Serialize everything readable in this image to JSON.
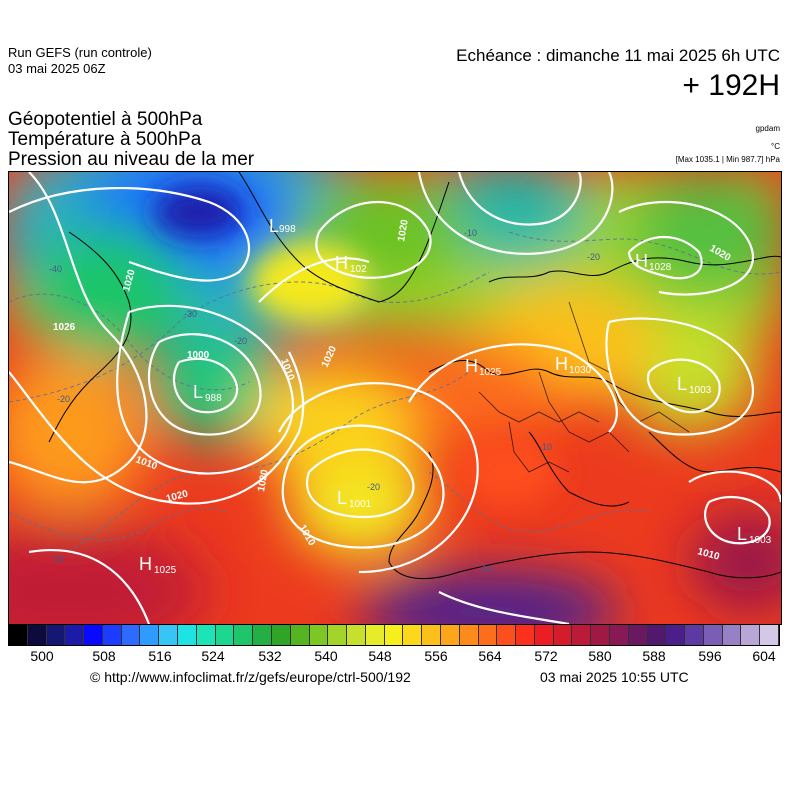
{
  "header": {
    "run_title": "Run GEFS (run controle)",
    "run_date": "03 mai 2025 06Z",
    "forecast_valid": "Echéance : dimanche 11 mai 2025 6h UTC",
    "lead_time": "+ 192H"
  },
  "parameters": [
    "Géopotentiel à 500hPa",
    "Température à 500hPa",
    "Pression au niveau de la mer"
  ],
  "units": {
    "geopotential": "gpdam",
    "temperature": "°C",
    "pressure_range": "[Max 1035.1 | Min 987.7] hPa"
  },
  "map": {
    "pressure_centers": [
      {
        "type": "H",
        "value": "102"
      },
      {
        "type": "H",
        "value": "1028"
      },
      {
        "type": "H",
        "value": "1025"
      },
      {
        "type": "H",
        "value": "1030"
      },
      {
        "type": "H",
        "value": "1025"
      },
      {
        "type": "L",
        "value": "998"
      },
      {
        "type": "L",
        "value": "988"
      },
      {
        "type": "L",
        "value": "1001"
      },
      {
        "type": "L",
        "value": "1003"
      },
      {
        "type": "L",
        "value": "1003"
      }
    ],
    "isobar_labels": [
      "1026",
      "1020",
      "1000",
      "1010",
      "1020",
      "1010",
      "1020",
      "1020",
      "1010",
      "1020",
      "1010",
      "1020"
    ],
    "isotherm_labels": [
      "-40",
      "-30",
      "-20",
      "-20",
      "-10",
      "-20",
      "-10",
      "-20",
      "-10",
      "-10"
    ]
  },
  "colorbar": {
    "colors": [
      "#000000",
      "#0d0a3e",
      "#161673",
      "#1b1ba8",
      "#0909ff",
      "#1c3cff",
      "#2d6bff",
      "#2e9bff",
      "#36c5f5",
      "#1fe3e3",
      "#1ce4b8",
      "#1bd790",
      "#1ec56b",
      "#22b044",
      "#2fa427",
      "#55b520",
      "#7cc724",
      "#a2d42a",
      "#c7e02e",
      "#e6eb2a",
      "#f5f01d",
      "#fbd91a",
      "#fcc01c",
      "#fda61b",
      "#fd8b1b",
      "#fd6e1c",
      "#fc4f1c",
      "#f9311d",
      "#ed1d24",
      "#d41c2a",
      "#bb1a38",
      "#a01844",
      "#871a54",
      "#6a1860",
      "#52186e",
      "#4a1f8c",
      "#5d3aa3",
      "#7a5db5",
      "#9880c6",
      "#b7a6d6",
      "#d3c8e5"
    ],
    "tick_labels": [
      "500",
      "508",
      "516",
      "524",
      "532",
      "540",
      "548",
      "556",
      "564",
      "572",
      "580",
      "588",
      "596",
      "604"
    ]
  },
  "footer": {
    "source": "© http://www.infoclimat.fr/z/gefs/europe/ctrl-500/192",
    "issued": "03 mai 2025 10:55 UTC"
  }
}
